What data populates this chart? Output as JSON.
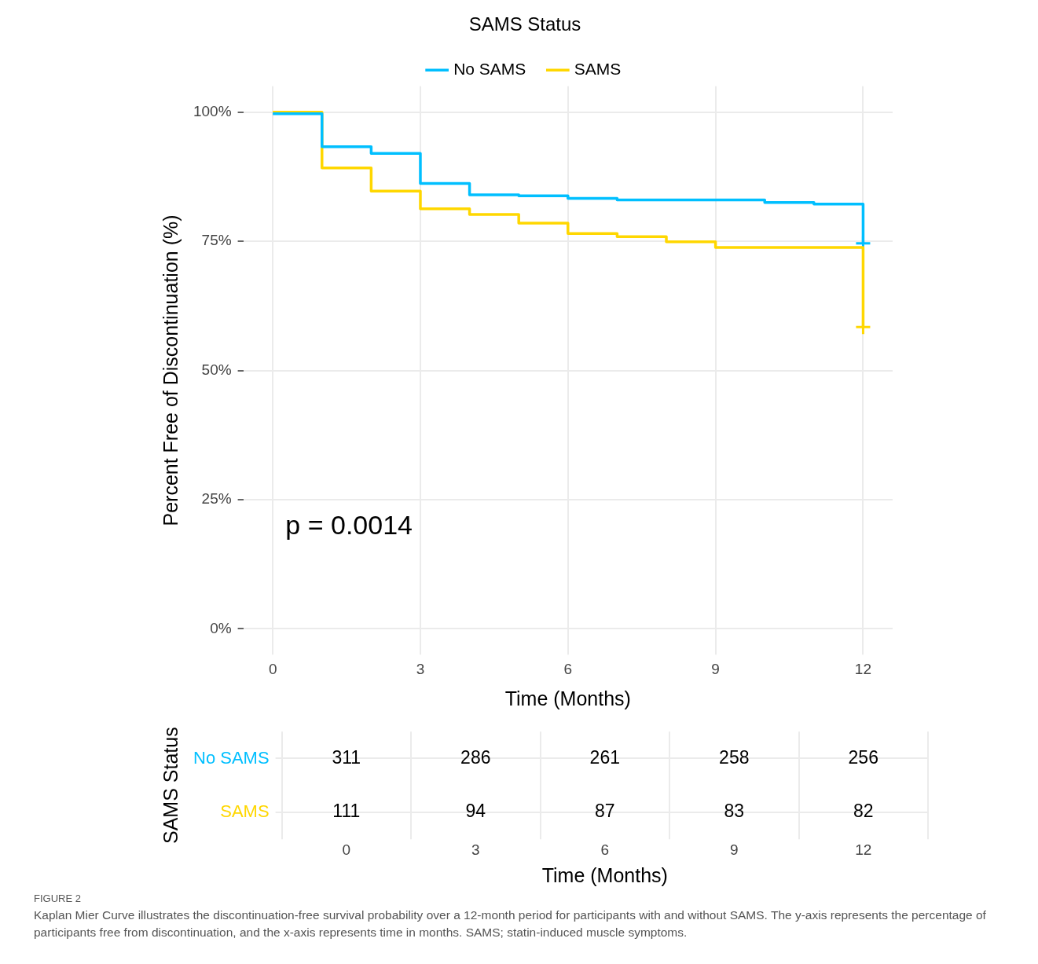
{
  "chart_data": [
    {
      "type": "step",
      "xlabel": "Time (Months)",
      "ylabel": "Percent Free of Discontinuation (%)",
      "legend_title": "SAMS Status",
      "legend": "top",
      "xlim": [
        -0.6,
        12.6
      ],
      "xticks": [
        0,
        3,
        6,
        9,
        12
      ],
      "ylim": [
        -5,
        105
      ],
      "yticks": [
        {
          "value": 0,
          "label": "0%"
        },
        {
          "value": 25,
          "label": "25%"
        },
        {
          "value": 50,
          "label": "50%"
        },
        {
          "value": 75,
          "label": "75%"
        },
        {
          "value": 100,
          "label": "100%"
        }
      ],
      "grid": true,
      "line_style": "solid",
      "series": [
        {
          "name": "No SAMS",
          "color": "#00bfff",
          "x": [
            0,
            1,
            2,
            3,
            4,
            5,
            6,
            7,
            10,
            11,
            12
          ],
          "values": [
            99.7,
            93.3,
            92.0,
            86.2,
            84.0,
            83.8,
            83.3,
            83.0,
            82.5,
            82.2,
            74.6
          ]
        },
        {
          "name": "SAMS",
          "color": "#ffd700",
          "x": [
            0,
            1,
            2,
            3,
            4,
            5,
            6,
            7,
            8,
            9,
            12
          ],
          "values": [
            100,
            89.2,
            84.7,
            81.3,
            80.2,
            78.5,
            76.5,
            75.9,
            74.9,
            73.8,
            58.4
          ]
        },
        {
          "type": "scatter",
          "marker": "cross",
          "color": "#00bfff",
          "x": [
            12
          ],
          "values": [
            74.6
          ]
        },
        {
          "type": "scatter",
          "marker": "cross",
          "color": "#ffd700",
          "x": [
            12
          ],
          "values": [
            58.4
          ]
        }
      ],
      "annotations": [
        "p = 0.0014"
      ]
    },
    {
      "type": "heatmap",
      "xlabel": "Time (Months)",
      "ylabel": "SAMS Status",
      "grid": true,
      "data_labels": true,
      "categories": [
        "0",
        "3",
        "6",
        "9",
        "12"
      ],
      "y_categories": [
        "No SAMS",
        "SAMS"
      ],
      "cells": [
        [
          311,
          286,
          261,
          258,
          256
        ],
        [
          111,
          94,
          87,
          83,
          82
        ]
      ],
      "annotations": [
        "FIGURE 2",
        "Kaplan Mier Curve illustrates the discontinuation-free survival probability over a 12-month period for participants with and without SAMS. The y-axis represents the percentage of participants free from discontinuation, and the x-axis represents time in months. SAMS; statin-induced muscle symptoms."
      ]
    }
  ]
}
